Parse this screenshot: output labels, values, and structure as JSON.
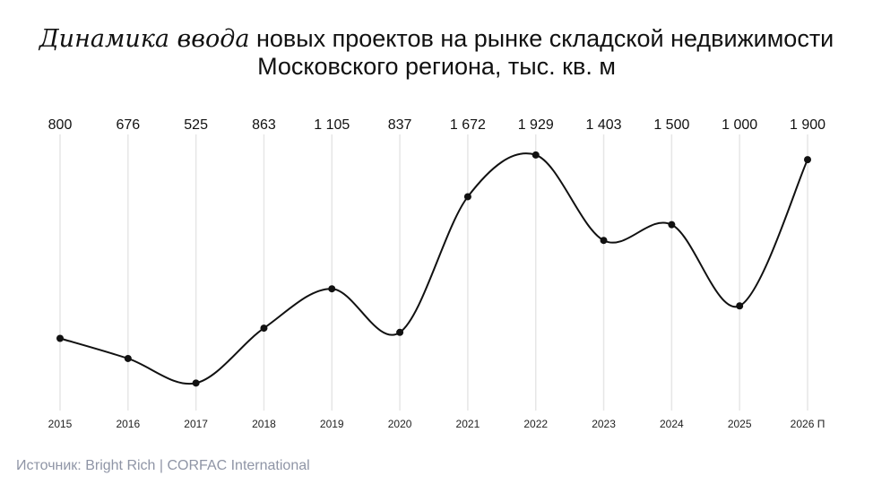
{
  "title": {
    "italic": "Динамика ввода",
    "rest": " новых проектов на рынке складской недвижимости",
    "line2": "Московского региона, тыс. кв. м"
  },
  "source": "Источник: Bright Rich | CORFAC International",
  "colors": {
    "line": "#111111",
    "grid": "#e6e6e6",
    "source": "#8f95a6"
  },
  "chart_data": {
    "type": "line",
    "categories": [
      "2015",
      "2016",
      "2017",
      "2018",
      "2019",
      "2020",
      "2021",
      "2022",
      "2023",
      "2024",
      "2025",
      "2026 П"
    ],
    "values": [
      800,
      676,
      525,
      863,
      1105,
      837,
      1672,
      1929,
      1403,
      1500,
      1000,
      1900
    ],
    "value_labels": [
      "800",
      "676",
      "525",
      "863",
      "1 105",
      "837",
      "1 672",
      "1 929",
      "1 403",
      "1 500",
      "1 000",
      "1 900"
    ],
    "title": "Динамика ввода новых проектов на рынке складской недвижимости Московского региона, тыс. кв. м",
    "xlabel": "",
    "ylabel": "",
    "ylim": [
      400,
      2000
    ],
    "grid": "vertical",
    "smooth": true,
    "markers": true
  }
}
